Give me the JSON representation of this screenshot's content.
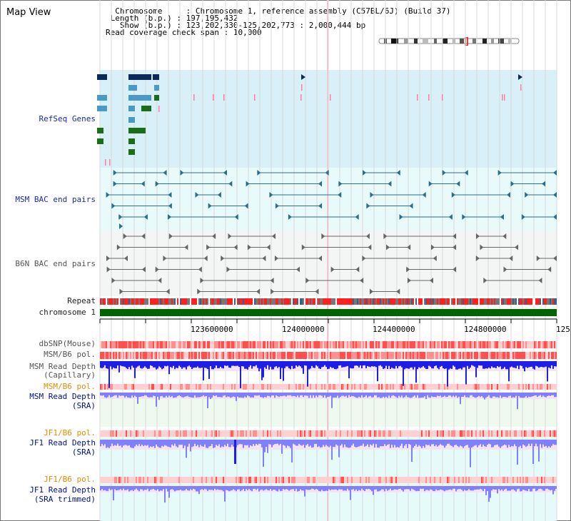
{
  "header": {
    "title": "Map View",
    "chromosome_label": "Chromosome",
    "chromosome_value": "Chromosome 1, reference assembly (C57BL/6J) (Build 37)",
    "length_label": "Length (b.p.)",
    "length_value": "197,195,432",
    "show_label": "Show (b.p.)",
    "show_value": "123,202,330-125,202,773 : 2,000,444 bp",
    "coverage_label": "Read coverage check span",
    "coverage_value": "10,000"
  },
  "tracks": {
    "refseq": "RefSeq Genes",
    "msm_bac": "MSM BAC end pairs",
    "b6n_bac": "B6N BAC end pairs",
    "repeat": "Repeat",
    "chromosome": "chromosome 1",
    "dbsnp": "dbSNP(Mouse)",
    "msm_pol": "MSM/B6 pol.",
    "msm_depth_cap_1": "MSM Read Depth",
    "msm_depth_cap_2": "(Capillary)",
    "msm_pol_2": "MSM/B6 pol.",
    "msm_depth_sra_1": "MSM Read Depth",
    "msm_depth_sra_2": "(SRA)",
    "jf1_pol": "JF1/B6 pol.",
    "jf1_depth_sra_1": "JF1 Read Depth",
    "jf1_depth_sra_2": "(SRA)",
    "jf1_pol_2": "JF1/B6 pol.",
    "jf1_depth_trim_1": "JF1 Read Depth",
    "jf1_depth_trim_2": "(SRA trimmed)"
  },
  "axis": {
    "ticks": [
      "123600000",
      "124000000",
      "124400000",
      "124800000",
      "125"
    ]
  },
  "colors": {
    "refseq_bg": "#d9f0f8",
    "msm_bg": "#e8fafa",
    "b6n_bg": "#f4f6f6",
    "chromosome": "#006400",
    "depth_blue": "#1e1ee6",
    "depth_light": "#8080ff",
    "pol_red": "#ff6060",
    "gene_navy": "#0a2a5a",
    "gene_lightblue": "#4a9ac8",
    "gene_green": "#1a6e1a"
  }
}
